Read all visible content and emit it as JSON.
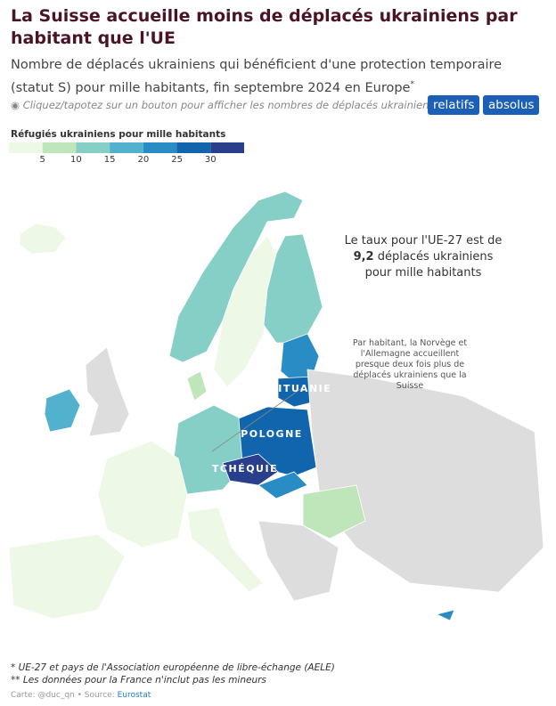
{
  "header": {
    "title": "La Suisse accueille moins de déplacés ukrainiens par habitant que l'UE",
    "subtitle": "Nombre de déplacés ukrainiens qui bénéficient d'une protection temporaire (statut S) pour mille habitants, fin septembre 2024 en Europe",
    "subtitle_mark": "*",
    "hint": "◉ Cliquez/tapotez sur un bouton pour afficher les nombres de déplacés ukrainiens",
    "buttons": [
      "relatifs",
      "absolus"
    ]
  },
  "legend": {
    "title": "Réfugiés ukrainiens pour mille habitants",
    "ticks": [
      5,
      10,
      15,
      20,
      25,
      30
    ],
    "colors": [
      "#eef8e6",
      "#bfe5bb",
      "#86cfc6",
      "#52b1cd",
      "#2a8cc4",
      "#1165ad",
      "#2a3f8c"
    ]
  },
  "annotations": {
    "eu_before": "Le taux pour l'UE-27 est de",
    "eu_value": "9,2",
    "eu_after": "déplacés ukrainiens pour mille habitants",
    "norway": "Par habitant, la Norvège et l'Allemagne accueillent presque deux fois plus de déplacés ukrainiens que la Suisse"
  },
  "countries": [
    "LITUANIE",
    "POLOGNE",
    "TCHÉQUIE"
  ],
  "footnotes": [
    "* UE-27 et pays de l'Association européenne de libre-échange (AELE)",
    "** Les données pour la France n'inclut pas les mineurs"
  ],
  "credit": {
    "text": "Carte: @duc_qn • Source:",
    "source": "Eurostat"
  }
}
